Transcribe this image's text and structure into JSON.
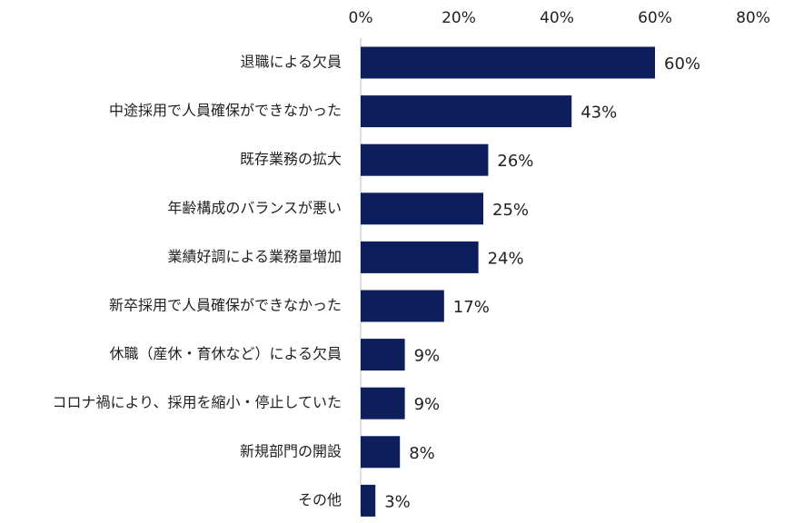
{
  "chart_data": {
    "type": "bar",
    "orientation": "horizontal",
    "categories": [
      "退職による欠員",
      "中途採用で人員確保ができなかった",
      "既存業務の拡大",
      "年齢構成のバランスが悪い",
      "業績好調による業務量増加",
      "新卒採用で人員確保ができなかった",
      "休職（産休・育休など）による欠員",
      "コロナ禍により、採用を縮小・停止していた",
      "新規部門の開設",
      "その他"
    ],
    "values": [
      60,
      43,
      26,
      25,
      24,
      17,
      9,
      9,
      8,
      3
    ],
    "data_labels": [
      "60%",
      "43%",
      "26%",
      "25%",
      "24%",
      "17%",
      "9%",
      "9%",
      "8%",
      "3%"
    ],
    "x_ticks": [
      0,
      20,
      40,
      60,
      80
    ],
    "x_tick_labels": [
      "0%",
      "20%",
      "40%",
      "60%",
      "80%"
    ],
    "xlim": [
      0,
      80
    ],
    "x_axis_position": "top",
    "grid": false,
    "legend": "none",
    "bar_color": "#0c1f5c",
    "axis_color": "#bfbfbf"
  }
}
